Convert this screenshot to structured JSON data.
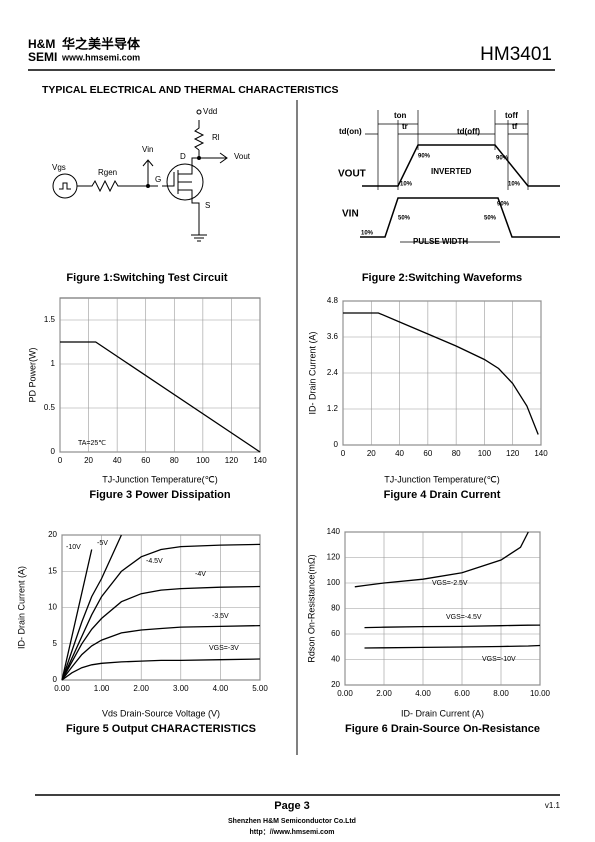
{
  "header": {
    "logo_top": "H&M",
    "logo_bottom": "SEMI",
    "company_cn": "华之美半导体",
    "website": "www.hmsemi.com",
    "part_number": "HM3401"
  },
  "section_title": "TYPICAL ELECTRICAL AND THERMAL CHARACTERISTICS",
  "figures": [
    {
      "caption": "Figure 1:Switching Test Circuit",
      "labels": [
        "Vdd",
        "Rl",
        "Vin",
        "Vout",
        "Vgs",
        "Rgen",
        "G",
        "D",
        "S"
      ]
    },
    {
      "caption": "Figure 2:Switching Waveforms",
      "labels": [
        "td(on)",
        "ton",
        "tr",
        "td(off)",
        "toff",
        "tf",
        "90%",
        "90%",
        "10%",
        "10%",
        "VOUT",
        "INVERTED",
        "VIN",
        "50%",
        "50%",
        "90%",
        "10%",
        "PULSE WIDTH"
      ]
    }
  ],
  "chart_data": [
    {
      "type": "line",
      "title": "Figure 3 Power Dissipation",
      "x_label": "TJ-Junction Temperature(℃)",
      "y_label": "PD  Power(W)",
      "annotation": "TA=25℃",
      "x": [
        0,
        25,
        140
      ],
      "values": [
        1.25,
        1.25,
        0
      ],
      "color": "#000000",
      "xlim": [
        0,
        140
      ],
      "xticks": [
        0,
        20,
        40,
        60,
        80,
        100,
        120,
        140
      ],
      "ylim": [
        0,
        1.75
      ],
      "yticks": [
        0,
        0.5,
        1,
        1.5
      ],
      "grid": true
    },
    {
      "type": "line",
      "title": "Figure 4 Drain Current",
      "x_label": "TJ-Junction Temperature(℃)",
      "y_label": "ID- Drain Current (A)",
      "x": [
        0,
        25,
        40,
        60,
        80,
        100,
        110,
        120,
        130,
        138
      ],
      "values": [
        4.4,
        4.4,
        4.1,
        3.7,
        3.3,
        2.85,
        2.55,
        2.05,
        1.3,
        0.35
      ],
      "color": "#000000",
      "xlim": [
        0,
        140
      ],
      "xticks": [
        0,
        20,
        40,
        60,
        80,
        100,
        120,
        140
      ],
      "ylim": [
        0,
        4.8
      ],
      "yticks": [
        0,
        1.2,
        2.4,
        3.6,
        4.8
      ],
      "grid": true
    },
    {
      "type": "line",
      "title": "Figure 5 Output CHARACTERISTICS",
      "x_label": "Vds Drain-Source Voltage (V)",
      "y_label": "ID- Drain Current (A)",
      "x": [
        0,
        0.25,
        0.5,
        0.75,
        1,
        1.5,
        2,
        2.5,
        3,
        4,
        5
      ],
      "series": [
        {
          "name": "-10V",
          "color": "#000000",
          "values": [
            0,
            6,
            12,
            18,
            null,
            null,
            null,
            null,
            null,
            null,
            null
          ]
        },
        {
          "name": "-5V",
          "color": "#000000",
          "values": [
            0,
            4,
            8,
            11.5,
            14,
            20,
            null,
            null,
            null,
            null,
            null
          ]
        },
        {
          "name": "-4.5V",
          "color": "#000000",
          "values": [
            0,
            3,
            6,
            9,
            11.5,
            15,
            17,
            18,
            18.4,
            18.6,
            18.7
          ]
        },
        {
          "name": "-4V",
          "color": "#000000",
          "values": [
            0,
            2.5,
            5,
            7,
            8.5,
            10.8,
            11.9,
            12.4,
            12.6,
            12.8,
            12.9
          ]
        },
        {
          "name": "-3.5V",
          "color": "#000000",
          "values": [
            0,
            1.8,
            3.5,
            4.7,
            5.5,
            6.5,
            6.9,
            7.1,
            7.3,
            7.4,
            7.5
          ]
        },
        {
          "name": "VGS=-3V",
          "color": "#000000",
          "values": [
            0,
            1,
            1.7,
            2.1,
            2.3,
            2.5,
            2.6,
            2.7,
            2.7,
            2.8,
            2.9
          ]
        }
      ],
      "xlim": [
        0,
        5
      ],
      "xticks": [
        {
          "value": 0,
          "label": "0.00"
        },
        {
          "value": 1,
          "label": "1.00"
        },
        {
          "value": 2,
          "label": "2.00"
        },
        {
          "value": 3,
          "label": "3.00"
        },
        {
          "value": 4,
          "label": "4.00"
        },
        {
          "value": 5,
          "label": "5.00"
        }
      ],
      "ylim": [
        0,
        20
      ],
      "yticks": [
        0,
        5,
        10,
        15,
        20
      ],
      "grid": true
    },
    {
      "type": "line",
      "title": "Figure 6 Drain-Source On-Resistance",
      "x_label": "ID- Drain Current (A)",
      "y_label": "Rdson On-Resistance(mΩ)",
      "x": [
        0.5,
        1,
        2,
        4,
        6,
        8,
        9,
        9.4,
        10
      ],
      "series": [
        {
          "name": "VGS=-2.5V",
          "color": "#000000",
          "values": [
            97,
            98,
            100,
            103,
            108,
            118,
            128,
            140,
            null
          ]
        },
        {
          "name": "VGS=-4.5V",
          "color": "#000000",
          "values": [
            null,
            65,
            65.3,
            65.8,
            66,
            66.5,
            66.8,
            66.9,
            67
          ]
        },
        {
          "name": "VGS=-10V",
          "color": "#000000",
          "values": [
            null,
            49,
            49.2,
            49.5,
            49.8,
            50.2,
            50.5,
            50.6,
            51
          ]
        }
      ],
      "xlim": [
        0,
        10
      ],
      "xticks": [
        {
          "value": 0,
          "label": "0.00"
        },
        {
          "value": 2,
          "label": "2.00"
        },
        {
          "value": 4,
          "label": "4.00"
        },
        {
          "value": 6,
          "label": "6.00"
        },
        {
          "value": 8,
          "label": "8.00"
        },
        {
          "value": 10,
          "label": "10.00"
        }
      ],
      "ylim": [
        20,
        140
      ],
      "yticks": [
        20,
        40,
        60,
        80,
        100,
        120,
        140
      ],
      "grid": true
    }
  ],
  "footer": {
    "page": "Page 3",
    "version": "v1.1",
    "company": "Shenzhen H&M Semiconductor Co.Ltd",
    "website": "http：//www.hmsemi.com"
  }
}
